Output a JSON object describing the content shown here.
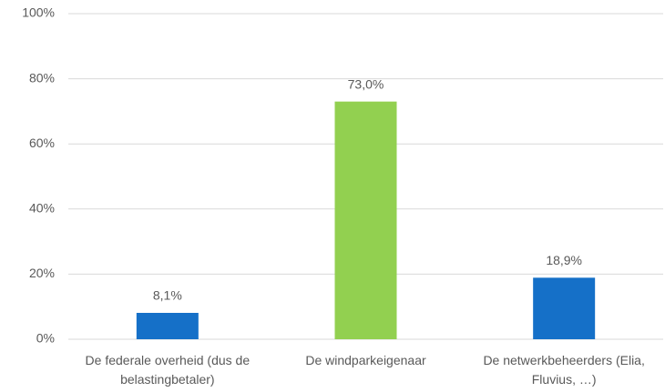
{
  "chart_data": {
    "type": "bar",
    "categories": [
      "De federale overheid (dus de belastingbetaler)",
      "De windparkeigenaar",
      "De netwerkbeheerders (Elia, Fluvius, …)"
    ],
    "values": [
      8.1,
      73.0,
      18.9
    ],
    "value_labels": [
      "8,1%",
      "73,0%",
      "18,9%"
    ],
    "colors": [
      "#1570c8",
      "#92d050",
      "#1570c8"
    ],
    "ylim": [
      0,
      100
    ],
    "yticks": [
      {
        "value": 0,
        "label": "0%"
      },
      {
        "value": 20,
        "label": "20%"
      },
      {
        "value": 40,
        "label": "40%"
      },
      {
        "value": 60,
        "label": "60%"
      },
      {
        "value": 80,
        "label": "80%"
      },
      {
        "value": 100,
        "label": "100%"
      }
    ],
    "grid": true
  }
}
